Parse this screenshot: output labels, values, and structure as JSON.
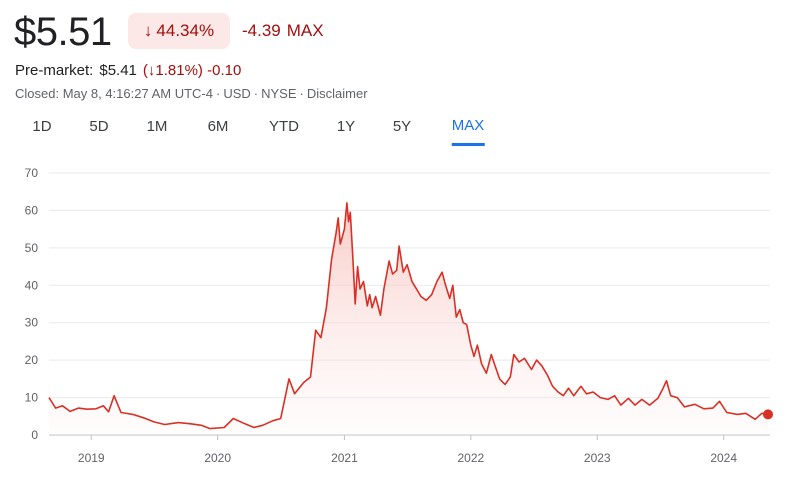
{
  "quote": {
    "price": "$5.51",
    "change_arrow": "↓",
    "change_pct": "44.34%",
    "change_abs": "-4.39",
    "period_label": "MAX"
  },
  "premarket": {
    "label": "Pre-market:",
    "price": "$5.41",
    "pct": "(↓1.81%)",
    "abs": "-0.10"
  },
  "status": {
    "closed": "Closed: May 8, 4:16:27 AM UTC-4",
    "currency": "USD",
    "exchange": "NYSE",
    "disclaimer": "Disclaimer",
    "separator": "·"
  },
  "tabs": [
    {
      "label": "1D"
    },
    {
      "label": "5D"
    },
    {
      "label": "1M"
    },
    {
      "label": "6M"
    },
    {
      "label": "YTD"
    },
    {
      "label": "1Y"
    },
    {
      "label": "5Y"
    },
    {
      "label": "MAX"
    }
  ],
  "active_tab": "MAX",
  "colors": {
    "line": "#d93025",
    "fill_top": "#fad2cf",
    "grid": "#e8eaed",
    "active": "#1a73e8",
    "negative": "#a50e0e"
  },
  "chart_data": {
    "type": "area",
    "x_axis": "date",
    "xlim": [
      "2018-09-01",
      "2024-05-08"
    ],
    "ylim": [
      0,
      70
    ],
    "y_ticks": [
      0,
      10,
      20,
      30,
      40,
      50,
      60,
      70
    ],
    "x_ticks": [
      {
        "label": "2019",
        "x": "2019-01-01"
      },
      {
        "label": "2020",
        "x": "2020-01-01"
      },
      {
        "label": "2021",
        "x": "2021-01-01"
      },
      {
        "label": "2022",
        "x": "2022-01-01"
      },
      {
        "label": "2023",
        "x": "2023-01-01"
      },
      {
        "label": "2024",
        "x": "2024-01-01"
      }
    ],
    "grid": "horizontal",
    "legend": "none",
    "series": [
      {
        "points": [
          [
            "2018-09-01",
            10.0
          ],
          [
            "2018-09-20",
            7.2
          ],
          [
            "2018-10-10",
            7.8
          ],
          [
            "2018-11-01",
            6.3
          ],
          [
            "2018-11-25",
            7.2
          ],
          [
            "2018-12-20",
            6.9
          ],
          [
            "2019-01-15",
            7.0
          ],
          [
            "2019-02-05",
            7.8
          ],
          [
            "2019-02-20",
            6.2
          ],
          [
            "2019-03-08",
            10.5
          ],
          [
            "2019-03-28",
            6.0
          ],
          [
            "2019-05-01",
            5.5
          ],
          [
            "2019-06-01",
            4.6
          ],
          [
            "2019-07-01",
            3.5
          ],
          [
            "2019-08-01",
            2.8
          ],
          [
            "2019-09-10",
            3.3
          ],
          [
            "2019-10-15",
            3.0
          ],
          [
            "2019-11-15",
            2.6
          ],
          [
            "2019-12-10",
            1.7
          ],
          [
            "2020-01-20",
            2.0
          ],
          [
            "2020-02-15",
            4.4
          ],
          [
            "2020-03-20",
            3.0
          ],
          [
            "2020-04-15",
            2.0
          ],
          [
            "2020-05-10",
            2.6
          ],
          [
            "2020-06-08",
            3.8
          ],
          [
            "2020-07-01",
            4.4
          ],
          [
            "2020-07-25",
            15.0
          ],
          [
            "2020-08-10",
            11.0
          ],
          [
            "2020-09-05",
            14.0
          ],
          [
            "2020-09-25",
            15.5
          ],
          [
            "2020-10-10",
            28.0
          ],
          [
            "2020-10-25",
            26.0
          ],
          [
            "2020-11-10",
            34.0
          ],
          [
            "2020-11-25",
            47.0
          ],
          [
            "2020-12-08",
            54.0
          ],
          [
            "2020-12-14",
            58.0
          ],
          [
            "2020-12-20",
            51.0
          ],
          [
            "2021-01-01",
            55.0
          ],
          [
            "2021-01-08",
            62.0
          ],
          [
            "2021-01-13",
            57.0
          ],
          [
            "2021-01-18",
            59.5
          ],
          [
            "2021-01-25",
            48.0
          ],
          [
            "2021-02-01",
            35.0
          ],
          [
            "2021-02-08",
            45.0
          ],
          [
            "2021-02-15",
            39.0
          ],
          [
            "2021-02-25",
            41.0
          ],
          [
            "2021-03-08",
            34.5
          ],
          [
            "2021-03-15",
            37.5
          ],
          [
            "2021-03-22",
            34.0
          ],
          [
            "2021-04-01",
            37.0
          ],
          [
            "2021-04-15",
            32.0
          ],
          [
            "2021-04-25",
            39.0
          ],
          [
            "2021-05-10",
            46.5
          ],
          [
            "2021-05-20",
            43.0
          ],
          [
            "2021-06-01",
            44.0
          ],
          [
            "2021-06-08",
            50.5
          ],
          [
            "2021-06-20",
            43.5
          ],
          [
            "2021-07-01",
            45.5
          ],
          [
            "2021-07-15",
            41.0
          ],
          [
            "2021-07-25",
            39.5
          ],
          [
            "2021-08-10",
            37.0
          ],
          [
            "2021-08-25",
            36.0
          ],
          [
            "2021-09-10",
            37.5
          ],
          [
            "2021-09-25",
            41.0
          ],
          [
            "2021-10-10",
            43.5
          ],
          [
            "2021-10-20",
            40.0
          ],
          [
            "2021-11-01",
            36.5
          ],
          [
            "2021-11-10",
            40.0
          ],
          [
            "2021-11-20",
            31.5
          ],
          [
            "2021-11-30",
            33.5
          ],
          [
            "2021-12-10",
            30.0
          ],
          [
            "2021-12-20",
            29.5
          ],
          [
            "2022-01-01",
            24.0
          ],
          [
            "2022-01-10",
            21.0
          ],
          [
            "2022-01-20",
            24.0
          ],
          [
            "2022-02-01",
            19.0
          ],
          [
            "2022-02-15",
            16.5
          ],
          [
            "2022-03-01",
            21.5
          ],
          [
            "2022-03-10",
            19.0
          ],
          [
            "2022-03-25",
            15.0
          ],
          [
            "2022-04-10",
            13.5
          ],
          [
            "2022-04-25",
            15.5
          ],
          [
            "2022-05-05",
            21.5
          ],
          [
            "2022-05-20",
            19.5
          ],
          [
            "2022-06-05",
            20.5
          ],
          [
            "2022-06-25",
            17.5
          ],
          [
            "2022-07-10",
            20.0
          ],
          [
            "2022-07-25",
            18.5
          ],
          [
            "2022-08-10",
            16.0
          ],
          [
            "2022-08-25",
            13.0
          ],
          [
            "2022-09-10",
            11.5
          ],
          [
            "2022-09-25",
            10.5
          ],
          [
            "2022-10-10",
            12.5
          ],
          [
            "2022-10-25",
            10.5
          ],
          [
            "2022-11-15",
            13.0
          ],
          [
            "2022-12-01",
            11.0
          ],
          [
            "2022-12-20",
            11.5
          ],
          [
            "2023-01-10",
            10.0
          ],
          [
            "2023-02-01",
            9.5
          ],
          [
            "2023-02-20",
            10.5
          ],
          [
            "2023-03-10",
            8.0
          ],
          [
            "2023-04-01",
            9.8
          ],
          [
            "2023-04-20",
            8.0
          ],
          [
            "2023-05-10",
            9.5
          ],
          [
            "2023-06-01",
            8.0
          ],
          [
            "2023-06-25",
            9.8
          ],
          [
            "2023-07-10",
            12.5
          ],
          [
            "2023-07-20",
            14.5
          ],
          [
            "2023-08-01",
            10.5
          ],
          [
            "2023-08-20",
            10.0
          ],
          [
            "2023-09-10",
            7.5
          ],
          [
            "2023-10-10",
            8.2
          ],
          [
            "2023-11-05",
            7.0
          ],
          [
            "2023-12-01",
            7.2
          ],
          [
            "2023-12-20",
            9.0
          ],
          [
            "2024-01-10",
            6.0
          ],
          [
            "2024-02-10",
            5.5
          ],
          [
            "2024-03-05",
            5.8
          ],
          [
            "2024-04-01",
            4.2
          ],
          [
            "2024-04-20",
            5.8
          ],
          [
            "2024-05-08",
            5.51
          ]
        ],
        "last_point": [
          "2024-05-08",
          5.51
        ]
      }
    ]
  }
}
